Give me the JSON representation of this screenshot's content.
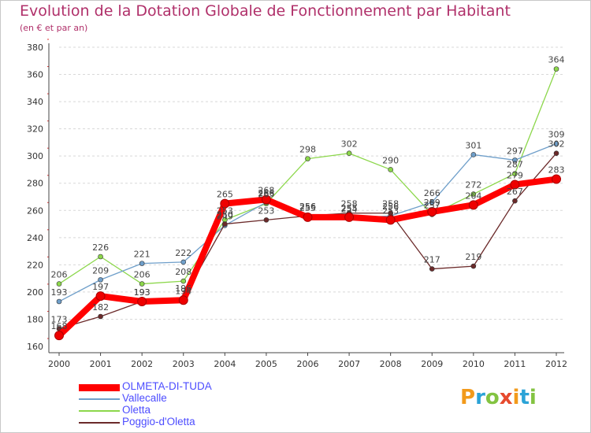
{
  "title": "Evolution de la Dotation Globale de Fonctionnement par Habitant",
  "subtitle": "(en € et par an)",
  "logo_text": "Proxiti",
  "chart_data": {
    "type": "line",
    "title": "Evolution de la Dotation Globale de Fonctionnement par Habitant",
    "subtitle": "(en € et par an)",
    "xlabel": "",
    "ylabel": "",
    "ylim": [
      160,
      380
    ],
    "yticks": [
      160,
      180,
      200,
      220,
      240,
      260,
      280,
      300,
      320,
      340,
      360,
      380
    ],
    "grid": "horizontal dashed",
    "legend_position": "bottom-left",
    "categories": [
      "2000",
      "2001",
      "2002",
      "2003",
      "2004",
      "2005",
      "2006",
      "2007",
      "2008",
      "2009",
      "2010",
      "2011",
      "2012"
    ],
    "series": [
      {
        "name": "Oletta",
        "color": "#8cd74b",
        "values": [
          206,
          226,
          206,
          208,
          253,
          265,
          298,
          302,
          290,
          257,
          272,
          287,
          364
        ]
      },
      {
        "name": "Vallecalle",
        "color": "#6f9fca",
        "values": [
          193,
          209,
          221,
          222,
          249,
          266,
          256,
          254,
          256,
          266,
          301,
          297,
          309
        ]
      },
      {
        "name": "Poggio-d'Oletta",
        "color": "#6b2a2a",
        "values": [
          173,
          182,
          193,
          196,
          250,
          253,
          256,
          258,
          258,
          217,
          219,
          267,
          302
        ]
      },
      {
        "name": "OLMETA-DI-TUDA",
        "color": "#ff0000",
        "values": [
          168,
          197,
          193,
          194,
          265,
          268,
          255,
          255,
          253,
          259,
          264,
          279,
          283
        ]
      }
    ],
    "value_labels": [
      [
        "206",
        "226",
        "206",
        "208",
        "253",
        "265",
        "298",
        "302",
        "290",
        "257",
        "272",
        "287",
        "364"
      ],
      [
        "193",
        "209",
        "221",
        "222",
        "249",
        "266",
        "256",
        "254",
        "256",
        "266",
        "301",
        "297",
        "309"
      ],
      [
        "173",
        "182",
        "193",
        "196",
        "250",
        "253",
        "256",
        "258",
        "258",
        "217",
        "219",
        "267",
        "302"
      ],
      [
        "168",
        "197",
        "193",
        "194",
        "265",
        "268",
        "255",
        "255",
        "253",
        "259",
        "264",
        "279",
        "283"
      ]
    ]
  },
  "legend": [
    {
      "name": "OLMETA-DI-TUDA",
      "color": "#ff0000"
    },
    {
      "name": "Vallecalle",
      "color": "#6f9fca"
    },
    {
      "name": "Oletta",
      "color": "#8cd74b"
    },
    {
      "name": "Poggio-d'Oletta",
      "color": "#6b2a2a"
    }
  ]
}
